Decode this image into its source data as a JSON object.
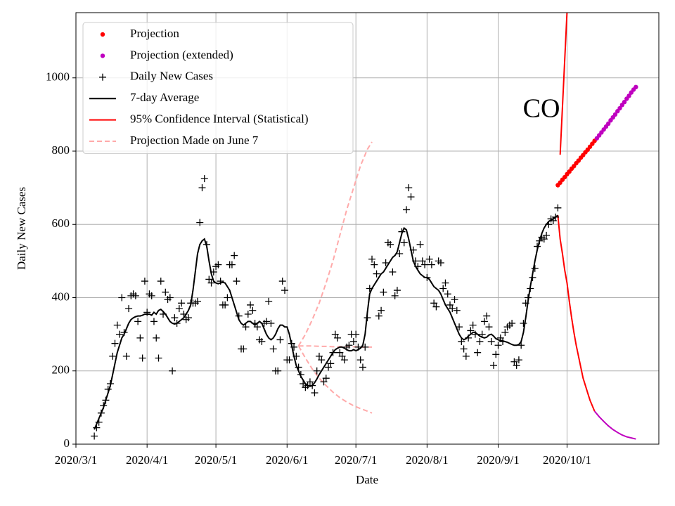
{
  "chart_data": {
    "type": "line",
    "xlabel": "Date",
    "ylabel": "Daily New Cases",
    "annotation": "CO",
    "grid": true,
    "legend": "upper left",
    "xlim": [
      "2020-03-01",
      "2020-11-10"
    ],
    "xticks": [
      {
        "value": "2020-03-01",
        "label": "2020/3/1"
      },
      {
        "value": "2020-04-01",
        "label": "2020/4/1"
      },
      {
        "value": "2020-05-01",
        "label": "2020/5/1"
      },
      {
        "value": "2020-06-01",
        "label": "2020/6/1"
      },
      {
        "value": "2020-07-01",
        "label": "2020/7/1"
      },
      {
        "value": "2020-08-01",
        "label": "2020/8/1"
      },
      {
        "value": "2020-09-01",
        "label": "2020/9/1"
      },
      {
        "value": "2020-10-01",
        "label": "2020/10/1"
      }
    ],
    "ylim": [
      0,
      1178
    ],
    "yticks": [
      0,
      200,
      400,
      600,
      800,
      1000
    ],
    "x": [
      "2020-03-09",
      "2020-03-10",
      "2020-03-11",
      "2020-03-12",
      "2020-03-13",
      "2020-03-14",
      "2020-03-15",
      "2020-03-16",
      "2020-03-17",
      "2020-03-18",
      "2020-03-19",
      "2020-03-20",
      "2020-03-21",
      "2020-03-22",
      "2020-03-23",
      "2020-03-24",
      "2020-03-25",
      "2020-03-26",
      "2020-03-27",
      "2020-03-28",
      "2020-03-29",
      "2020-03-30",
      "2020-03-31",
      "2020-04-01",
      "2020-04-02",
      "2020-04-03",
      "2020-04-04",
      "2020-04-05",
      "2020-04-06",
      "2020-04-07",
      "2020-04-08",
      "2020-04-09",
      "2020-04-10",
      "2020-04-11",
      "2020-04-12",
      "2020-04-13",
      "2020-04-14",
      "2020-04-15",
      "2020-04-16",
      "2020-04-17",
      "2020-04-18",
      "2020-04-19",
      "2020-04-20",
      "2020-04-21",
      "2020-04-22",
      "2020-04-23",
      "2020-04-24",
      "2020-04-25",
      "2020-04-26",
      "2020-04-27",
      "2020-04-28",
      "2020-04-29",
      "2020-04-30",
      "2020-05-01",
      "2020-05-02",
      "2020-05-03",
      "2020-05-04",
      "2020-05-05",
      "2020-05-06",
      "2020-05-07",
      "2020-05-08",
      "2020-05-09",
      "2020-05-10",
      "2020-05-11",
      "2020-05-12",
      "2020-05-13",
      "2020-05-14",
      "2020-05-15",
      "2020-05-16",
      "2020-05-17",
      "2020-05-18",
      "2020-05-19",
      "2020-05-20",
      "2020-05-21",
      "2020-05-22",
      "2020-05-23",
      "2020-05-24",
      "2020-05-25",
      "2020-05-26",
      "2020-05-27",
      "2020-05-28",
      "2020-05-29",
      "2020-05-30",
      "2020-05-31",
      "2020-06-01",
      "2020-06-02",
      "2020-06-03",
      "2020-06-04",
      "2020-06-05",
      "2020-06-06",
      "2020-06-07",
      "2020-06-08",
      "2020-06-09",
      "2020-06-10",
      "2020-06-11",
      "2020-06-12",
      "2020-06-13",
      "2020-06-14",
      "2020-06-15",
      "2020-06-16",
      "2020-06-17",
      "2020-06-18",
      "2020-06-19",
      "2020-06-20",
      "2020-06-21",
      "2020-06-22",
      "2020-06-23",
      "2020-06-24",
      "2020-06-25",
      "2020-06-26",
      "2020-06-27",
      "2020-06-28",
      "2020-06-29",
      "2020-06-30",
      "2020-07-01",
      "2020-07-02",
      "2020-07-03",
      "2020-07-04",
      "2020-07-05",
      "2020-07-06",
      "2020-07-07",
      "2020-07-08",
      "2020-07-09",
      "2020-07-10",
      "2020-07-11",
      "2020-07-12",
      "2020-07-13",
      "2020-07-14",
      "2020-07-15",
      "2020-07-16",
      "2020-07-17",
      "2020-07-18",
      "2020-07-19",
      "2020-07-20",
      "2020-07-21",
      "2020-07-22",
      "2020-07-23",
      "2020-07-24",
      "2020-07-25",
      "2020-07-26",
      "2020-07-27",
      "2020-07-28",
      "2020-07-29",
      "2020-07-30",
      "2020-07-31",
      "2020-08-01",
      "2020-08-02",
      "2020-08-03",
      "2020-08-04",
      "2020-08-05",
      "2020-08-06",
      "2020-08-07",
      "2020-08-08",
      "2020-08-09",
      "2020-08-10",
      "2020-08-11",
      "2020-08-12",
      "2020-08-13",
      "2020-08-14",
      "2020-08-15",
      "2020-08-16",
      "2020-08-17",
      "2020-08-18",
      "2020-08-19",
      "2020-08-20",
      "2020-08-21",
      "2020-08-22",
      "2020-08-23",
      "2020-08-24",
      "2020-08-25",
      "2020-08-26",
      "2020-08-27",
      "2020-08-28",
      "2020-08-29",
      "2020-08-30",
      "2020-08-31",
      "2020-09-01",
      "2020-09-02",
      "2020-09-03",
      "2020-09-04",
      "2020-09-05",
      "2020-09-06",
      "2020-09-07",
      "2020-09-08",
      "2020-09-09",
      "2020-09-10",
      "2020-09-11",
      "2020-09-12",
      "2020-09-13",
      "2020-09-14",
      "2020-09-15",
      "2020-09-16",
      "2020-09-17",
      "2020-09-18",
      "2020-09-19",
      "2020-09-20",
      "2020-09-21",
      "2020-09-22",
      "2020-09-23",
      "2020-09-24",
      "2020-09-25",
      "2020-09-26",
      "2020-09-27"
    ],
    "series": [
      {
        "name": "Projection",
        "type": "scatter",
        "marker": "dot",
        "color": "#ff0000",
        "x": [
          "2020-09-27",
          "2020-09-28",
          "2020-09-29",
          "2020-09-30",
          "2020-10-01",
          "2020-10-02",
          "2020-10-03",
          "2020-10-04",
          "2020-10-05",
          "2020-10-06",
          "2020-10-07",
          "2020-10-08",
          "2020-10-09",
          "2020-10-10",
          "2020-10-11",
          "2020-10-12",
          "2020-10-13"
        ],
        "values": [
          707,
          714,
          722,
          729,
          737,
          744,
          752,
          759,
          767,
          774,
          782,
          789,
          797,
          804,
          812,
          820,
          828
        ]
      },
      {
        "name": "Projection (extended)",
        "type": "scatter",
        "marker": "dot",
        "color": "#bf00bf",
        "x": [
          "2020-10-14",
          "2020-10-15",
          "2020-10-16",
          "2020-10-17",
          "2020-10-18",
          "2020-10-19",
          "2020-10-20",
          "2020-10-21",
          "2020-10-22",
          "2020-10-23",
          "2020-10-24",
          "2020-10-25",
          "2020-10-26",
          "2020-10-27",
          "2020-10-28",
          "2020-10-29",
          "2020-10-30",
          "2020-10-31"
        ],
        "values": [
          835,
          843,
          851,
          859,
          867,
          875,
          884,
          892,
          900,
          909,
          917,
          926,
          934,
          943,
          951,
          960,
          968,
          975
        ]
      },
      {
        "name": "Daily New Cases",
        "type": "scatter",
        "marker": "plus",
        "color": "#000000",
        "values": [
          22,
          45,
          60,
          85,
          105,
          120,
          150,
          165,
          240,
          275,
          325,
          300,
          400,
          305,
          240,
          370,
          405,
          410,
          405,
          335,
          290,
          235,
          445,
          360,
          410,
          405,
          335,
          290,
          235,
          445,
          355,
          415,
          395,
          400,
          200,
          345,
          330,
          370,
          385,
          355,
          340,
          345,
          385,
          385,
          385,
          390,
          605,
          700,
          725,
          545,
          450,
          440,
          470,
          485,
          490,
          445,
          380,
          380,
          400,
          490,
          490,
          515,
          445,
          350,
          260,
          260,
          320,
          355,
          380,
          365,
          330,
          320,
          285,
          280,
          330,
          335,
          390,
          330,
          260,
          200,
          200,
          285,
          445,
          420,
          230,
          230,
          275,
          265,
          240,
          210,
          190,
          165,
          155,
          160,
          170,
          160,
          140,
          200,
          240,
          230,
          170,
          180,
          210,
          220,
          250,
          300,
          290,
          250,
          240,
          230,
          265,
          270,
          300,
          280,
          300,
          265,
          230,
          210,
          265,
          345,
          425,
          505,
          490,
          465,
          350,
          365,
          415,
          495,
          550,
          545,
          470,
          405,
          420,
          520,
          580,
          550,
          640,
          700,
          675,
          530,
          500,
          485,
          545,
          500,
          490,
          455,
          505,
          490,
          385,
          375,
          500,
          495,
          425,
          440,
          410,
          380,
          370,
          395,
          365,
          320,
          280,
          260,
          240,
          290,
          310,
          325,
          300,
          250,
          280,
          300,
          335,
          350,
          320,
          280,
          215,
          245,
          270,
          290,
          280,
          305,
          320,
          325,
          330,
          225,
          215,
          230,
          270,
          330,
          385,
          400,
          425,
          455,
          480,
          540,
          555,
          565,
          560,
          570,
          600,
          615,
          610,
          620,
          645
        ]
      },
      {
        "name": "7-day Average",
        "type": "line",
        "color": "#000000",
        "values": [
          40,
          55,
          70,
          85,
          100,
          120,
          140,
          160,
          190,
          220,
          250,
          270,
          290,
          300,
          315,
          330,
          340,
          345,
          348,
          350,
          350,
          352,
          355,
          355,
          355,
          352,
          360,
          355,
          365,
          368,
          362,
          355,
          345,
          335,
          330,
          328,
          330,
          335,
          340,
          345,
          355,
          365,
          380,
          420,
          470,
          520,
          545,
          555,
          560,
          540,
          500,
          465,
          445,
          440,
          438,
          440,
          442,
          440,
          430,
          420,
          400,
          380,
          360,
          340,
          330,
          325,
          330,
          335,
          335,
          330,
          325,
          330,
          335,
          330,
          315,
          300,
          290,
          285,
          290,
          300,
          315,
          325,
          325,
          320,
          320,
          300,
          270,
          240,
          215,
          200,
          185,
          175,
          165,
          160,
          158,
          160,
          168,
          178,
          190,
          200,
          210,
          220,
          230,
          240,
          250,
          258,
          262,
          265,
          265,
          262,
          258,
          255,
          255,
          258,
          255,
          258,
          262,
          270,
          300,
          360,
          410,
          425,
          435,
          445,
          455,
          465,
          470,
          480,
          490,
          500,
          510,
          515,
          525,
          550,
          575,
          590,
          585,
          560,
          530,
          500,
          485,
          475,
          465,
          460,
          455,
          455,
          450,
          440,
          430,
          425,
          420,
          410,
          395,
          380,
          370,
          360,
          345,
          330,
          315,
          300,
          290,
          285,
          288,
          295,
          300,
          305,
          305,
          300,
          295,
          292,
          290,
          292,
          298,
          300,
          295,
          288,
          285,
          283,
          282,
          280,
          278,
          275,
          272,
          270,
          270,
          272,
          280,
          305,
          345,
          390,
          430,
          465,
          500,
          530,
          555,
          575,
          590,
          600,
          608,
          612,
          615,
          620,
          625
        ]
      },
      {
        "name": "95% Confidence Interval (Statistical)",
        "type": "band",
        "color": "#ff0000",
        "x": [
          "2020-09-27",
          "2020-09-28",
          "2020-09-29",
          "2020-09-30",
          "2020-10-01",
          "2020-10-02",
          "2020-10-03",
          "2020-10-04",
          "2020-10-05",
          "2020-10-06",
          "2020-10-07",
          "2020-10-08",
          "2020-10-09",
          "2020-10-10",
          "2020-10-11",
          "2020-10-12",
          "2020-10-13"
        ],
        "lower": [
          625,
          560,
          520,
          475,
          440,
          390,
          345,
          305,
          270,
          240,
          210,
          180,
          160,
          140,
          120,
          105,
          90
        ],
        "upper": [
          null,
          790,
          920,
          1050,
          1180,
          null,
          null,
          null,
          null,
          null,
          null,
          null,
          null,
          null,
          null,
          null,
          null
        ]
      },
      {
        "type": "band",
        "color": "#bf00bf",
        "x": [
          "2020-10-13",
          "2020-10-15",
          "2020-10-17",
          "2020-10-19",
          "2020-10-21",
          "2020-10-23",
          "2020-10-25",
          "2020-10-27",
          "2020-10-29",
          "2020-10-31"
        ],
        "lower": [
          90,
          75,
          62,
          50,
          40,
          32,
          25,
          20,
          17,
          14
        ]
      },
      {
        "name": "Projection Made on June 7",
        "type": "band",
        "dash": true,
        "color": "#ffaaaa",
        "x": [
          "2020-06-06",
          "2020-06-09",
          "2020-06-12",
          "2020-06-15",
          "2020-06-18",
          "2020-06-21",
          "2020-06-24",
          "2020-06-27",
          "2020-06-30",
          "2020-07-03",
          "2020-07-06",
          "2020-07-08"
        ],
        "values": [
          268,
          268,
          268,
          267,
          267,
          266,
          266,
          266,
          266,
          265,
          265,
          265
        ],
        "lower": [
          268,
          235,
          205,
          180,
          160,
          142,
          127,
          115,
          105,
          97,
          90,
          85
        ],
        "upper": [
          268,
          300,
          340,
          385,
          440,
          500,
          570,
          640,
          700,
          760,
          805,
          825
        ]
      }
    ]
  }
}
